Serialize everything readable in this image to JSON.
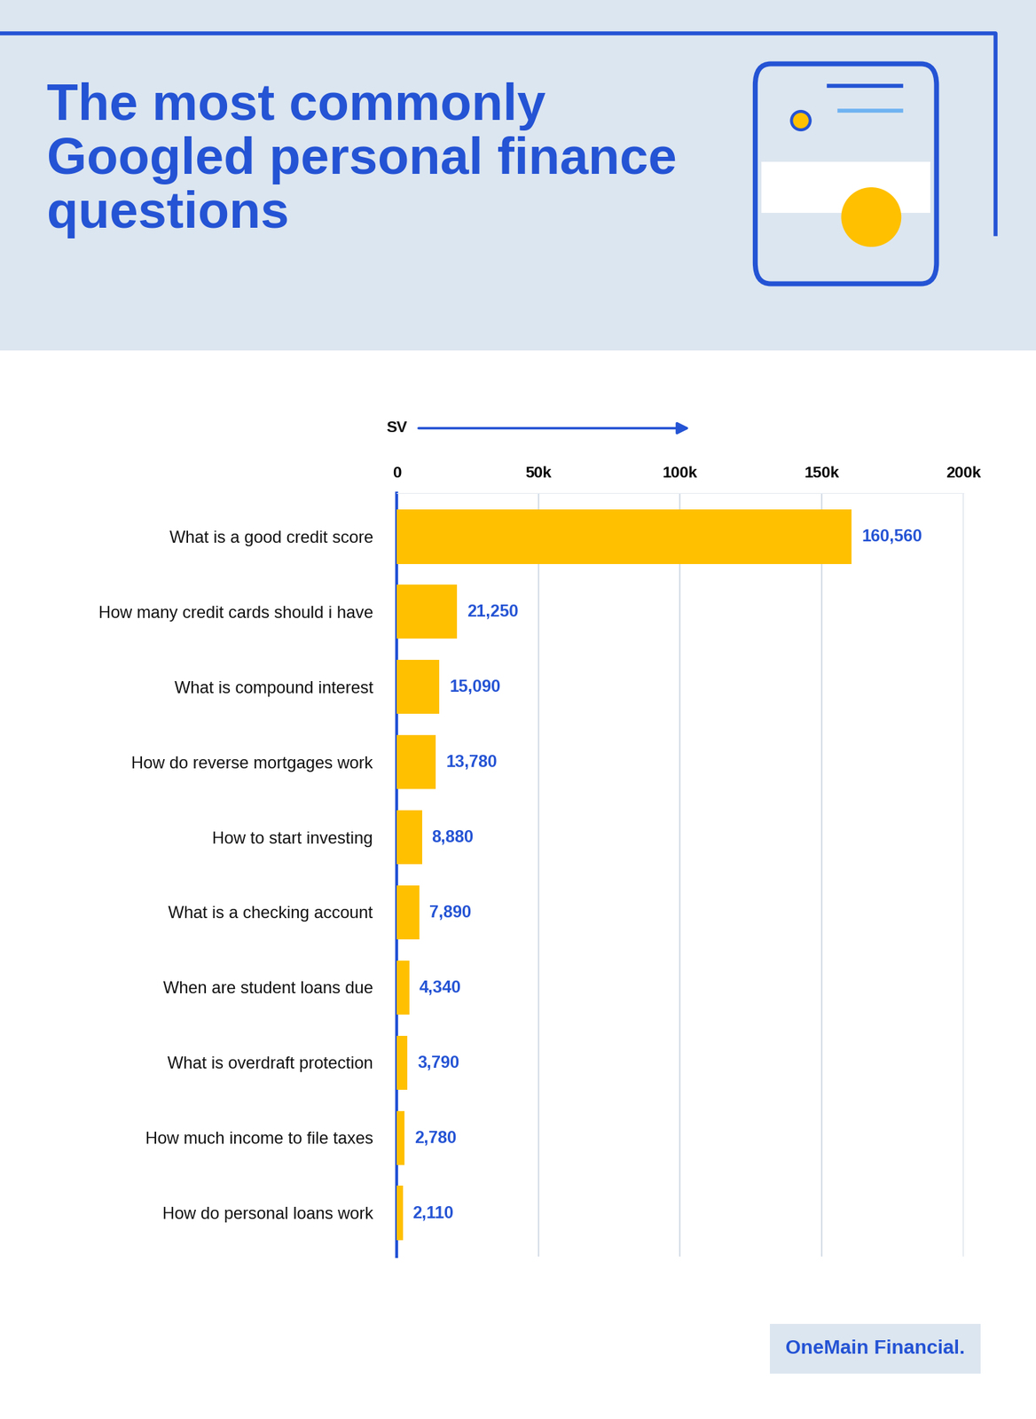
{
  "chart_data": {
    "type": "bar",
    "orientation": "horizontal",
    "title": "The most commonly Googled personal finance questions",
    "x_label": "SV",
    "categories": [
      "What is a good credit score",
      "How many credit cards should i have",
      "What is compound interest",
      "How do reverse mortgages work",
      "How to start investing",
      "What is a checking account",
      "When are student loans due",
      "What is overdraft protection",
      "How much income to file taxes",
      "How do personal loans work"
    ],
    "values": [
      160560,
      21250,
      15090,
      13780,
      8880,
      7890,
      4340,
      3790,
      2780,
      2110
    ],
    "value_labels": [
      "160,560",
      "21,250",
      "15,090",
      "13,780",
      "8,880",
      "7,890",
      "4,340",
      "3,790",
      "2,780",
      "2,110"
    ],
    "color": "#ffc000",
    "xlim": [
      0,
      200000
    ],
    "xticks": [
      0,
      {
        "value": 50000,
        "label": "50k"
      },
      {
        "value": 100000,
        "label": "100k"
      },
      {
        "value": 150000,
        "label": "150k"
      },
      {
        "value": 200000,
        "label": "200k"
      }
    ],
    "grid": true,
    "data_labels": true,
    "footer": "OneMain Financial."
  }
}
